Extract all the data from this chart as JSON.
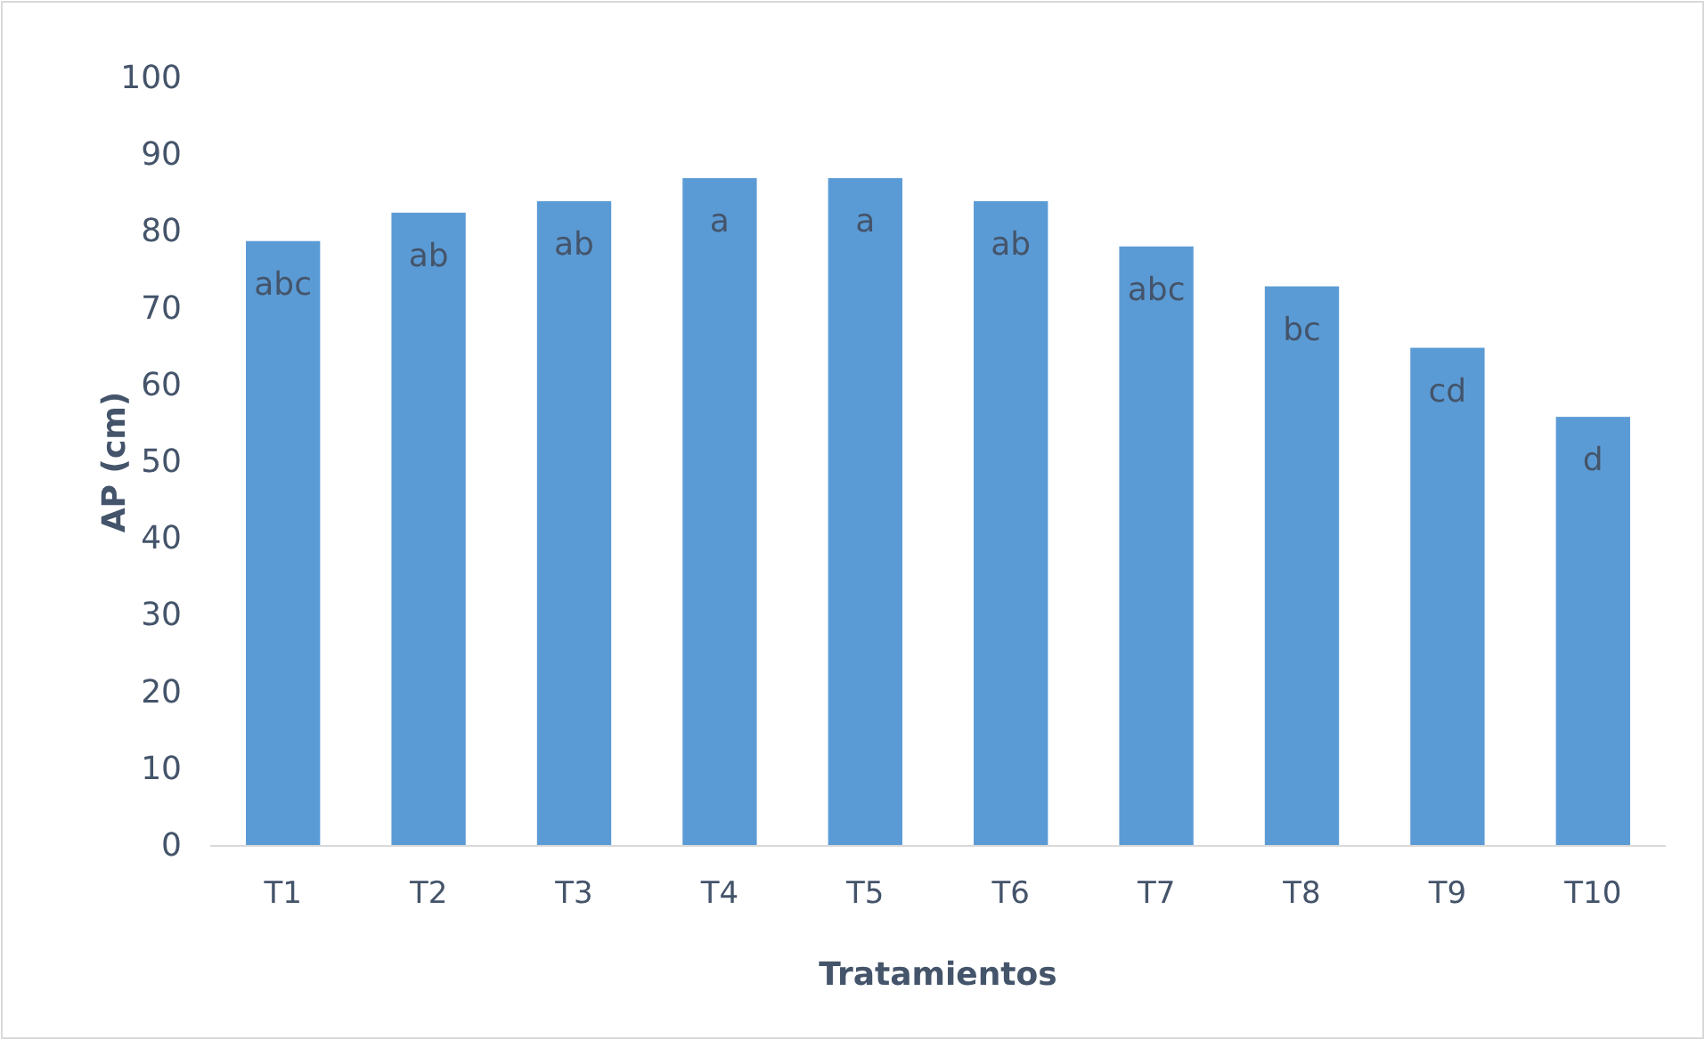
{
  "chart_data": {
    "type": "bar",
    "xlabel": "Tratamientos",
    "ylabel": "AP (cm)",
    "categories": [
      "T1",
      "T2",
      "T3",
      "T4",
      "T5",
      "T6",
      "T7",
      "T8",
      "T9",
      "T10"
    ],
    "values": [
      78.8,
      82.5,
      84,
      87,
      87,
      84,
      78.1,
      72.9,
      64.9,
      55.9
    ],
    "color": "#5b9bd5",
    "ylim": [
      0,
      100
    ],
    "yticks": [
      0,
      10,
      20,
      30,
      40,
      50,
      60,
      70,
      80,
      90,
      100
    ],
    "grid": false,
    "annotations": [
      {
        "text": "abc",
        "x": "T1",
        "y": 78.8
      },
      {
        "text": "ab",
        "x": "T2",
        "y": 82.5
      },
      {
        "text": "ab",
        "x": "T3",
        "y": 84
      },
      {
        "text": "a",
        "x": "T4",
        "y": 87
      },
      {
        "text": "a",
        "x": "T5",
        "y": 87
      },
      {
        "text": "ab",
        "x": "T6",
        "y": 84
      },
      {
        "text": "abc",
        "x": "T7",
        "y": 78.1
      },
      {
        "text": "bc",
        "x": "T8",
        "y": 72.9
      },
      {
        "text": "cd",
        "x": "T9",
        "y": 64.9
      },
      {
        "text": "d",
        "x": "T10",
        "y": 55.9
      }
    ]
  }
}
